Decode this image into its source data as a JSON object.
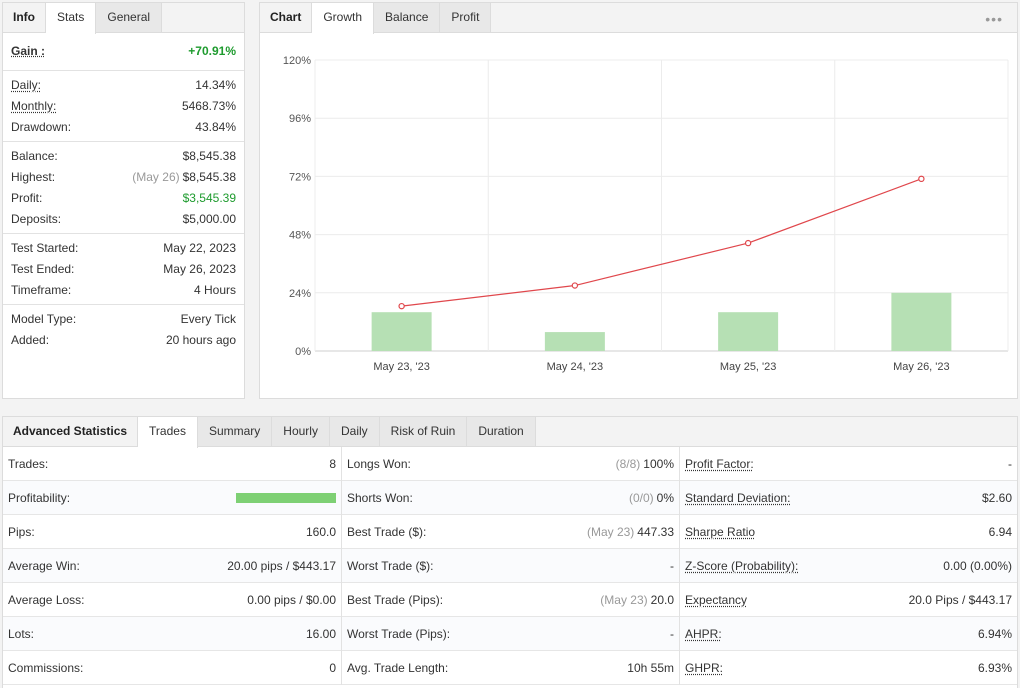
{
  "left_panel": {
    "tabs": [
      "Info",
      "Stats",
      "General"
    ],
    "gain": {
      "label": "Gain :",
      "value": "+70.91%"
    },
    "groups": [
      [
        {
          "label": "Daily:",
          "value": "14.34%",
          "underline": true
        },
        {
          "label": "Monthly:",
          "value": "5468.73%",
          "underline": true
        },
        {
          "label": "Drawdown:",
          "value": "43.84%"
        }
      ],
      [
        {
          "label": "Balance:",
          "value": "$8,545.38"
        },
        {
          "label": "Highest:",
          "note": "(May 26)",
          "value": "$8,545.38"
        },
        {
          "label": "Profit:",
          "value": "$3,545.39",
          "green": true
        },
        {
          "label": "Deposits:",
          "value": "$5,000.00"
        }
      ],
      [
        {
          "label": "Test Started:",
          "value": "May 22, 2023"
        },
        {
          "label": "Test Ended:",
          "value": "May 26, 2023"
        },
        {
          "label": "Timeframe:",
          "value": "4 Hours"
        }
      ],
      [
        {
          "label": "Model Type:",
          "value": "Every Tick"
        },
        {
          "label": "Added:",
          "value": "20 hours ago"
        }
      ]
    ]
  },
  "chart_panel": {
    "tabs": [
      "Chart",
      "Growth",
      "Balance",
      "Profit"
    ],
    "more_icon": "more-dots-icon",
    "more_glyph": "•••"
  },
  "chart_data": {
    "type": "line",
    "categories": [
      "May 23, '23",
      "May 24, '23",
      "May 25, '23",
      "May 26, '23"
    ],
    "y_ticks": [
      "120%",
      "96%",
      "72%",
      "48%",
      "24%",
      "0%"
    ],
    "ylim": [
      0,
      120
    ],
    "series": [
      {
        "type": "line",
        "values": [
          18.5,
          27,
          44.5,
          71
        ]
      },
      {
        "type": "bar",
        "values": [
          16,
          7.8,
          16,
          24
        ]
      }
    ],
    "colors": {
      "line": "#e0474c",
      "bar": "#b6e0b4",
      "grid": "#ececec"
    },
    "grid": true
  },
  "advanced": {
    "tabs": [
      "Advanced Statistics",
      "Trades",
      "Summary",
      "Hourly",
      "Daily",
      "Risk of Ruin",
      "Duration"
    ],
    "col1": [
      {
        "label": "Trades:",
        "value": "8"
      },
      {
        "label": "Profitability:",
        "bar": 1.0
      },
      {
        "label": "Pips:",
        "value": "160.0"
      },
      {
        "label": "Average Win:",
        "value": "20.00 pips / $443.17"
      },
      {
        "label": "Average Loss:",
        "value": "0.00 pips / $0.00"
      },
      {
        "label": "Lots:",
        "value": "16.00"
      },
      {
        "label": "Commissions:",
        "value": "0"
      }
    ],
    "col2": [
      {
        "label": "Longs Won:",
        "note": "(8/8)",
        "value": "100%"
      },
      {
        "label": "Shorts Won:",
        "note": "(0/0)",
        "value": "0%"
      },
      {
        "label": "Best Trade ($):",
        "note": "(May 23)",
        "value": "447.33"
      },
      {
        "label": "Worst Trade ($):",
        "value": "-"
      },
      {
        "label": "Best Trade (Pips):",
        "note": "(May 23)",
        "value": "20.0"
      },
      {
        "label": "Worst Trade (Pips):",
        "value": "-"
      },
      {
        "label": "Avg. Trade Length:",
        "value": "10h 55m"
      }
    ],
    "col3": [
      {
        "label": "Profit Factor:",
        "value": "-"
      },
      {
        "label": "Standard Deviation:",
        "value": "$2.60"
      },
      {
        "label": "Sharpe Ratio",
        "value": "6.94"
      },
      {
        "label": "Z-Score (Probability):",
        "value": "0.00 (0.00%)"
      },
      {
        "label": "Expectancy",
        "value": "20.0 Pips / $443.17"
      },
      {
        "label": "AHPR:",
        "value": "6.94%"
      },
      {
        "label": "GHPR:",
        "value": "6.93%"
      }
    ]
  }
}
